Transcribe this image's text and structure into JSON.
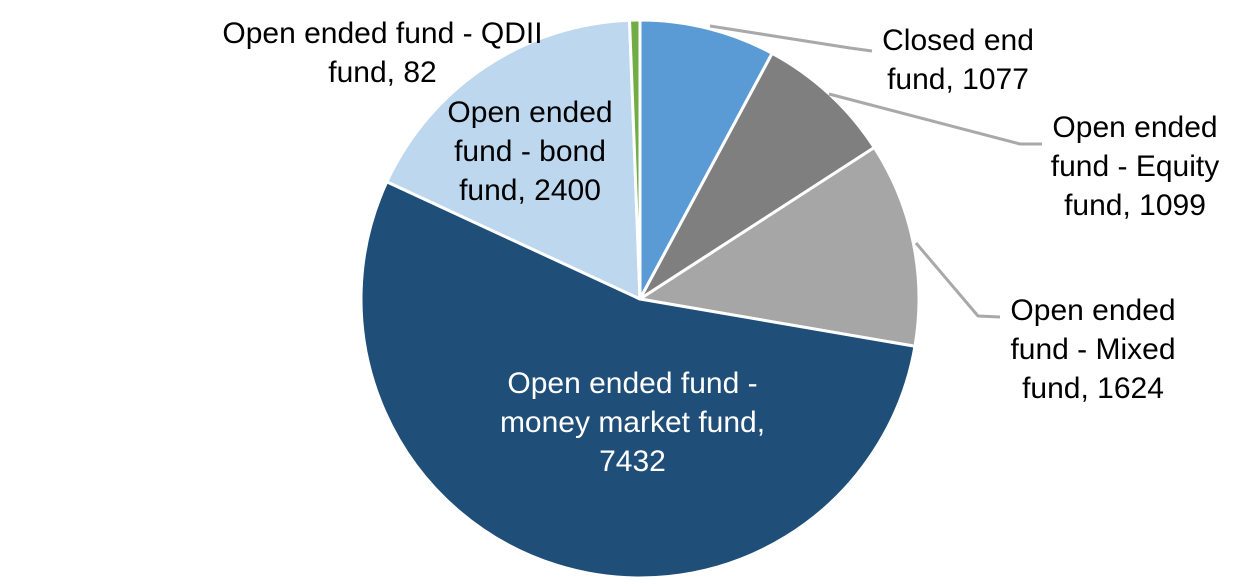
{
  "chart_data": {
    "type": "pie",
    "title": "",
    "legend": "none",
    "direction": "clockwise",
    "start_angle_deg": -90,
    "total": 13714,
    "slice_border_color": "#FFFFFF",
    "leader_line_color": "#A9A9A9",
    "slices": [
      {
        "name": "closed-end-fund",
        "label": "Closed end fund",
        "value": 1077,
        "color": "#5B9BD5",
        "label_color": "#000000",
        "label_placement": "outside-right",
        "label_lines": [
          "Closed end",
          "fund, 1077"
        ]
      },
      {
        "name": "open-ended-equity-fund",
        "label": "Open ended fund - Equity fund",
        "value": 1099,
        "color": "#7F7F7F",
        "label_color": "#000000",
        "label_placement": "outside-right",
        "label_lines": [
          "Open ended",
          "fund - Equity",
          "fund, 1099"
        ]
      },
      {
        "name": "open-ended-mixed-fund",
        "label": "Open ended fund - Mixed fund",
        "value": 1624,
        "color": "#A6A6A6",
        "label_color": "#000000",
        "label_placement": "outside-right",
        "label_lines": [
          "Open ended",
          "fund - Mixed",
          "fund, 1624"
        ]
      },
      {
        "name": "open-ended-money-market-fund",
        "label": "Open ended fund - money market fund",
        "value": 7432,
        "color": "#1F4E79",
        "label_color": "#FFFFFF",
        "label_placement": "inside",
        "label_lines": [
          "Open ended fund -",
          "money market fund,",
          "7432"
        ]
      },
      {
        "name": "open-ended-bond-fund",
        "label": "Open ended fund - bond fund",
        "value": 2400,
        "color": "#BDD7EE",
        "label_color": "#000000",
        "label_placement": "inside",
        "label_lines": [
          "Open ended",
          "fund - bond",
          "fund, 2400"
        ]
      },
      {
        "name": "open-ended-qdii-fund",
        "label": "Open ended fund - QDII fund",
        "value": 82,
        "color": "#70AD47",
        "label_color": "#000000",
        "label_placement": "outside-left",
        "label_lines": [
          "Open ended fund - QDII",
          "fund, 82"
        ]
      }
    ]
  }
}
